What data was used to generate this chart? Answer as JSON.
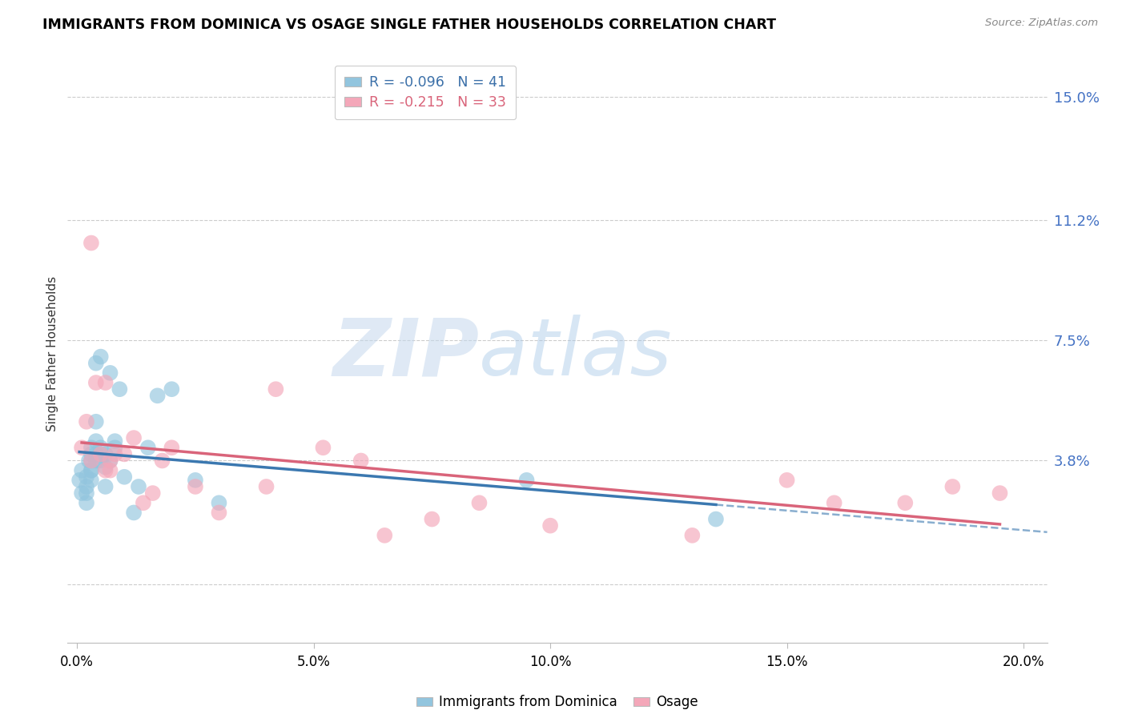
{
  "title": "IMMIGRANTS FROM DOMINICA VS OSAGE SINGLE FATHER HOUSEHOLDS CORRELATION CHART",
  "source": "Source: ZipAtlas.com",
  "ylabel": "Single Father Households",
  "xlabel_ticks": [
    "0.0%",
    "5.0%",
    "10.0%",
    "15.0%",
    "20.0%"
  ],
  "xlabel_vals": [
    0.0,
    0.05,
    0.1,
    0.15,
    0.2
  ],
  "ylabel_ticks": [
    "15.0%",
    "11.2%",
    "7.5%",
    "3.8%"
  ],
  "ylabel_vals": [
    0.15,
    0.112,
    0.075,
    0.038
  ],
  "ylabel_vals_grid": [
    0.0,
    0.038,
    0.075,
    0.112,
    0.15
  ],
  "xlim": [
    -0.002,
    0.205
  ],
  "ylim": [
    -0.018,
    0.16
  ],
  "blue_R": -0.096,
  "blue_N": 41,
  "pink_R": -0.215,
  "pink_N": 33,
  "blue_color": "#92C5DE",
  "pink_color": "#F4A7B9",
  "blue_line_color": "#3B78B0",
  "pink_line_color": "#D9647A",
  "watermark_zip": "ZIP",
  "watermark_atlas": "atlas",
  "legend_label_blue": "Immigrants from Dominica",
  "legend_label_pink": "Osage",
  "blue_scatter_x": [
    0.0005,
    0.001,
    0.001,
    0.002,
    0.002,
    0.002,
    0.002,
    0.0025,
    0.003,
    0.003,
    0.003,
    0.003,
    0.003,
    0.003,
    0.004,
    0.004,
    0.004,
    0.004,
    0.004,
    0.005,
    0.005,
    0.005,
    0.005,
    0.006,
    0.006,
    0.006,
    0.007,
    0.007,
    0.008,
    0.008,
    0.009,
    0.01,
    0.012,
    0.013,
    0.015,
    0.017,
    0.02,
    0.025,
    0.03,
    0.095,
    0.135
  ],
  "blue_scatter_y": [
    0.032,
    0.028,
    0.035,
    0.03,
    0.028,
    0.033,
    0.025,
    0.038,
    0.04,
    0.035,
    0.038,
    0.042,
    0.035,
    0.032,
    0.05,
    0.044,
    0.038,
    0.04,
    0.068,
    0.07,
    0.04,
    0.038,
    0.042,
    0.04,
    0.036,
    0.03,
    0.065,
    0.038,
    0.042,
    0.044,
    0.06,
    0.033,
    0.022,
    0.03,
    0.042,
    0.058,
    0.06,
    0.032,
    0.025,
    0.032,
    0.02
  ],
  "pink_scatter_x": [
    0.001,
    0.002,
    0.003,
    0.003,
    0.004,
    0.005,
    0.006,
    0.006,
    0.007,
    0.007,
    0.008,
    0.01,
    0.012,
    0.014,
    0.016,
    0.018,
    0.02,
    0.025,
    0.03,
    0.04,
    0.042,
    0.052,
    0.06,
    0.065,
    0.075,
    0.085,
    0.1,
    0.13,
    0.15,
    0.16,
    0.175,
    0.185,
    0.195
  ],
  "pink_scatter_y": [
    0.042,
    0.05,
    0.038,
    0.105,
    0.062,
    0.04,
    0.035,
    0.062,
    0.035,
    0.038,
    0.04,
    0.04,
    0.045,
    0.025,
    0.028,
    0.038,
    0.042,
    0.03,
    0.022,
    0.03,
    0.06,
    0.042,
    0.038,
    0.015,
    0.02,
    0.025,
    0.018,
    0.015,
    0.032,
    0.025,
    0.025,
    0.03,
    0.028
  ]
}
